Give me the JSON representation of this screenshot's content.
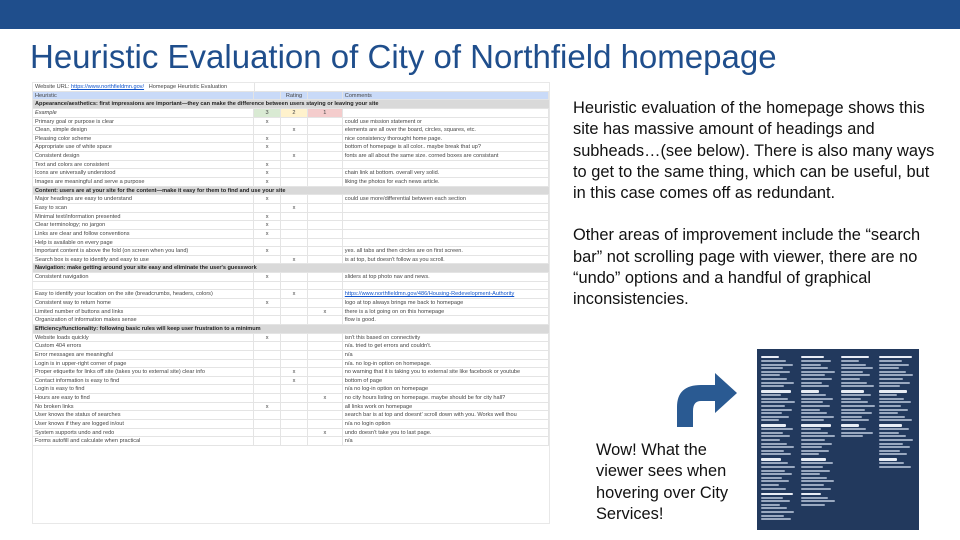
{
  "slide": {
    "title": "Heuristic Evaluation of City of Northfield homepage"
  },
  "sheet": {
    "url_label": "Website URL:",
    "url_value": "https://www.northfieldmn.gov/",
    "doc_title": "Homepage Heuristic Evaluation",
    "header": {
      "heuristic": "Heuristic",
      "rating": "Rating",
      "comments": "Comments"
    },
    "rows": [
      {
        "type": "section",
        "text": "Appearance/aesthetics: first impressions are important—they can make the difference between users staying or leaving your site"
      },
      {
        "type": "example",
        "criterion": "Example",
        "r1": "3",
        "r2": "2",
        "r3": "1",
        "comment": ""
      },
      {
        "type": "row",
        "criterion": "Primary goal or purpose is clear",
        "r1": "x",
        "r2": "",
        "r3": "",
        "comment": "could use mission statement or"
      },
      {
        "type": "row",
        "criterion": "Clean, simple design",
        "r1": "",
        "r2": "x",
        "r3": "",
        "comment": "elements are all over the board,  circles, squares, etc."
      },
      {
        "type": "row",
        "criterion": "Pleasing color scheme",
        "r1": "x",
        "r2": "",
        "r3": "",
        "comment": "nice consistency thorought home page."
      },
      {
        "type": "row",
        "criterion": "Appropriate use of white space",
        "r1": "x",
        "r2": "",
        "r3": "",
        "comment": "bottom of homepage is all color.. maybe break that up?"
      },
      {
        "type": "row",
        "criterion": "Consistent design",
        "r1": "",
        "r2": "x",
        "r3": "",
        "comment": "fonts are all about the same size.  corned boxes are consistant"
      },
      {
        "type": "row",
        "criterion": "Text and colors are consistent",
        "r1": "x",
        "r2": "",
        "r3": "",
        "comment": ""
      },
      {
        "type": "row",
        "criterion": "Icons are universally understood",
        "r1": "x",
        "r2": "",
        "r3": "",
        "comment": "chain link at bottom.  overall very solid."
      },
      {
        "type": "row",
        "criterion": "Images are meaningful and serve a purpose",
        "r1": "x",
        "r2": "",
        "r3": "",
        "comment": "liking the photos for each news article."
      },
      {
        "type": "section",
        "text": "Content: users are at your site for the content—make it easy for them to find and use your site"
      },
      {
        "type": "row",
        "criterion": "Major headings are easy to understand",
        "r1": "x",
        "r2": "",
        "r3": "",
        "comment": "could use more/differential between each section"
      },
      {
        "type": "row",
        "criterion": "Easy to scan",
        "r1": "",
        "r2": "x",
        "r3": "",
        "comment": ""
      },
      {
        "type": "row",
        "criterion": "Minimal text/information presented",
        "r1": "x",
        "r2": "",
        "r3": "",
        "comment": ""
      },
      {
        "type": "row",
        "criterion": "Clear terminology; no jargon",
        "r1": "x",
        "r2": "",
        "r3": "",
        "comment": ""
      },
      {
        "type": "row",
        "criterion": "Links are clear and follow conventions",
        "r1": "x",
        "r2": "",
        "r3": "",
        "comment": ""
      },
      {
        "type": "row",
        "criterion": "Help is available on every page",
        "r1": "",
        "r2": "",
        "r3": "",
        "comment": ""
      },
      {
        "type": "row",
        "criterion": "Important content is above the fold (on screen when you  land)",
        "r1": "x",
        "r2": "",
        "r3": "",
        "comment": "yes.  all tabs and then circles are on first screen."
      },
      {
        "type": "row",
        "criterion": "Search box is easy to identify and easy to use",
        "r1": "",
        "r2": "x",
        "r3": "",
        "comment": "is at top, but doesn't follow as you scroll."
      },
      {
        "type": "section",
        "text": "Navigation: make getting around your site easy and eliminate the user's guesswork"
      },
      {
        "type": "row",
        "criterion": "Consistent navigation",
        "r1": "x",
        "r2": "",
        "r3": "",
        "comment": "sliders at top photo nav and news."
      },
      {
        "type": "row",
        "criterion": "",
        "r1": "",
        "r2": "",
        "r3": "",
        "comment": ""
      },
      {
        "type": "row",
        "criterion": "Easy to identify your location on the site (breadcrumbs, headers, colors)",
        "r1": "",
        "r2": "x",
        "r3": "",
        "comment": "https://www.northfieldmn.gov/486/Housing-Redevelopment-Authority",
        "link": true
      },
      {
        "type": "row",
        "criterion": "Consistent way to return home",
        "r1": "x",
        "r2": "",
        "r3": "",
        "comment": "logo at top always brings me back to homepage"
      },
      {
        "type": "row",
        "criterion": "Limited number of buttons and links",
        "r1": "",
        "r2": "",
        "r3": "x",
        "comment": "there is a lot going on on this homepage"
      },
      {
        "type": "row",
        "criterion": "Organization of information makes sense",
        "r1": "",
        "r2": "",
        "r3": "",
        "comment": "flow is good."
      },
      {
        "type": "section",
        "text": "Efficiency/functionality: following basic rules will keep user frustration to a minimum"
      },
      {
        "type": "row",
        "criterion": "Website loads quickly",
        "r1": "x",
        "r2": "",
        "r3": "",
        "comment": "isn't this based on connectivity"
      },
      {
        "type": "row",
        "criterion": "Custom 404 errors",
        "r1": "",
        "r2": "",
        "r3": "",
        "comment": "n/a.  tried to get errors and couldn't."
      },
      {
        "type": "row",
        "criterion": "Error messages are meaningful",
        "r1": "",
        "r2": "",
        "r3": "",
        "comment": "n/a"
      },
      {
        "type": "row",
        "criterion": "Login is in upper-right corner of page",
        "r1": "",
        "r2": "",
        "r3": "",
        "comment": "n/a.  no log-in option on homepage."
      },
      {
        "type": "row",
        "criterion": "Proper etiquette for links off site (takes you to external site) clear info",
        "r1": "",
        "r2": "x",
        "r3": "",
        "comment": "no warning that it is taking you to external site like facebook or youtube"
      },
      {
        "type": "row",
        "criterion": "Contact information is easy to find",
        "r1": "",
        "r2": "x",
        "r3": "",
        "comment": "bottom of page"
      },
      {
        "type": "row",
        "criterion": "Login is easy to find",
        "r1": "",
        "r2": "",
        "r3": "",
        "comment": "n/a no log-in option on homepage"
      },
      {
        "type": "row",
        "criterion": "Hours are easy to find",
        "r1": "",
        "r2": "",
        "r3": "x",
        "comment": "no city hours listing on homepage. maybe should be for city hall?"
      },
      {
        "type": "row",
        "criterion": "No broken links",
        "r1": "x",
        "r2": "",
        "r3": "",
        "comment": "all links work on homepage"
      },
      {
        "type": "row",
        "criterion": "User knows the status of searches",
        "r1": "",
        "r2": "",
        "r3": "",
        "comment": "search bar is at top and doesnt' scroll down with you.  Works well thou"
      },
      {
        "type": "row",
        "criterion": "User knows if they are logged in/out",
        "r1": "",
        "r2": "",
        "r3": "",
        "comment": "n/a no login option"
      },
      {
        "type": "row",
        "criterion": "System supports undo and redo",
        "r1": "",
        "r2": "",
        "r3": "x",
        "comment": "undo doesn't take you to last page."
      },
      {
        "type": "row",
        "criterion": "Forms autofill and calculate when practical",
        "r1": "",
        "r2": "",
        "r3": "",
        "comment": "n/a"
      }
    ]
  },
  "body": {
    "paragraph1": "Heuristic evaluation of the homepage shows this site has massive amount of headings and subheads…(see below). There is also many ways to get to the same thing, which can be useful, but in this case comes off as redundant.",
    "paragraph2": "Other areas of improvement  include the “search bar” not scrolling page with viewer, there are no “undo” options and a handful of graphical inconsistencies."
  },
  "caption": "Wow! What the viewer sees when hovering over City Services!",
  "colors": {
    "topbar": "#1f4e8c",
    "title": "#1f4e8c",
    "arrow": "#2a5a92",
    "menu_bg": "#22395d"
  },
  "icons": {
    "arrow": "curved-arrow-up-right-icon"
  }
}
